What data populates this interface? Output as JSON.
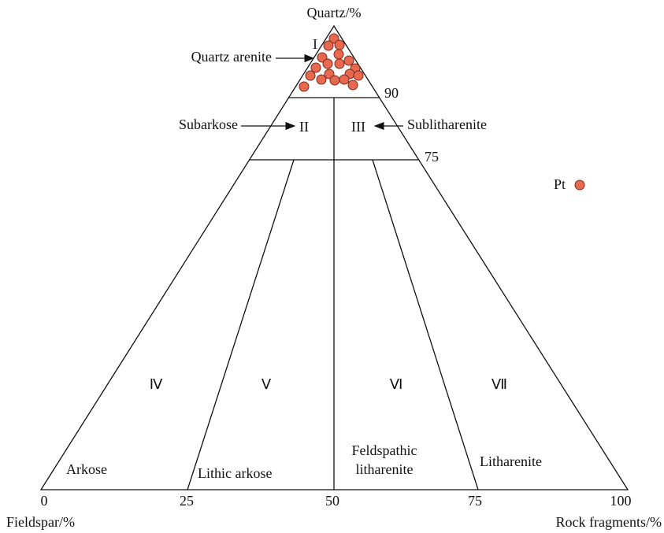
{
  "apex_label": "Quartz/%",
  "left_label": "Fieldspar/%",
  "right_label": "Rock fragments/%",
  "base_ticks": [
    "0",
    "25",
    "50",
    "75",
    "100"
  ],
  "side_ticks": [
    "90",
    "75"
  ],
  "regions": [
    {
      "numeral": "I",
      "name_lines": [
        "Quartz arenite"
      ]
    },
    {
      "numeral": "II",
      "name_lines": [
        "Subarkose"
      ]
    },
    {
      "numeral": "III",
      "name_lines": [
        "Sublitharenite"
      ]
    },
    {
      "numeral": "Ⅳ",
      "name_lines": [
        "Arkose"
      ]
    },
    {
      "numeral": "Ⅴ",
      "name_lines": [
        "Lithic arkose"
      ]
    },
    {
      "numeral": "Ⅵ",
      "name_lines": [
        "Feldspathic",
        "litharenite"
      ]
    },
    {
      "numeral": "Ⅶ",
      "name_lines": [
        "Litharenite"
      ]
    }
  ],
  "legend": "Pt"
}
